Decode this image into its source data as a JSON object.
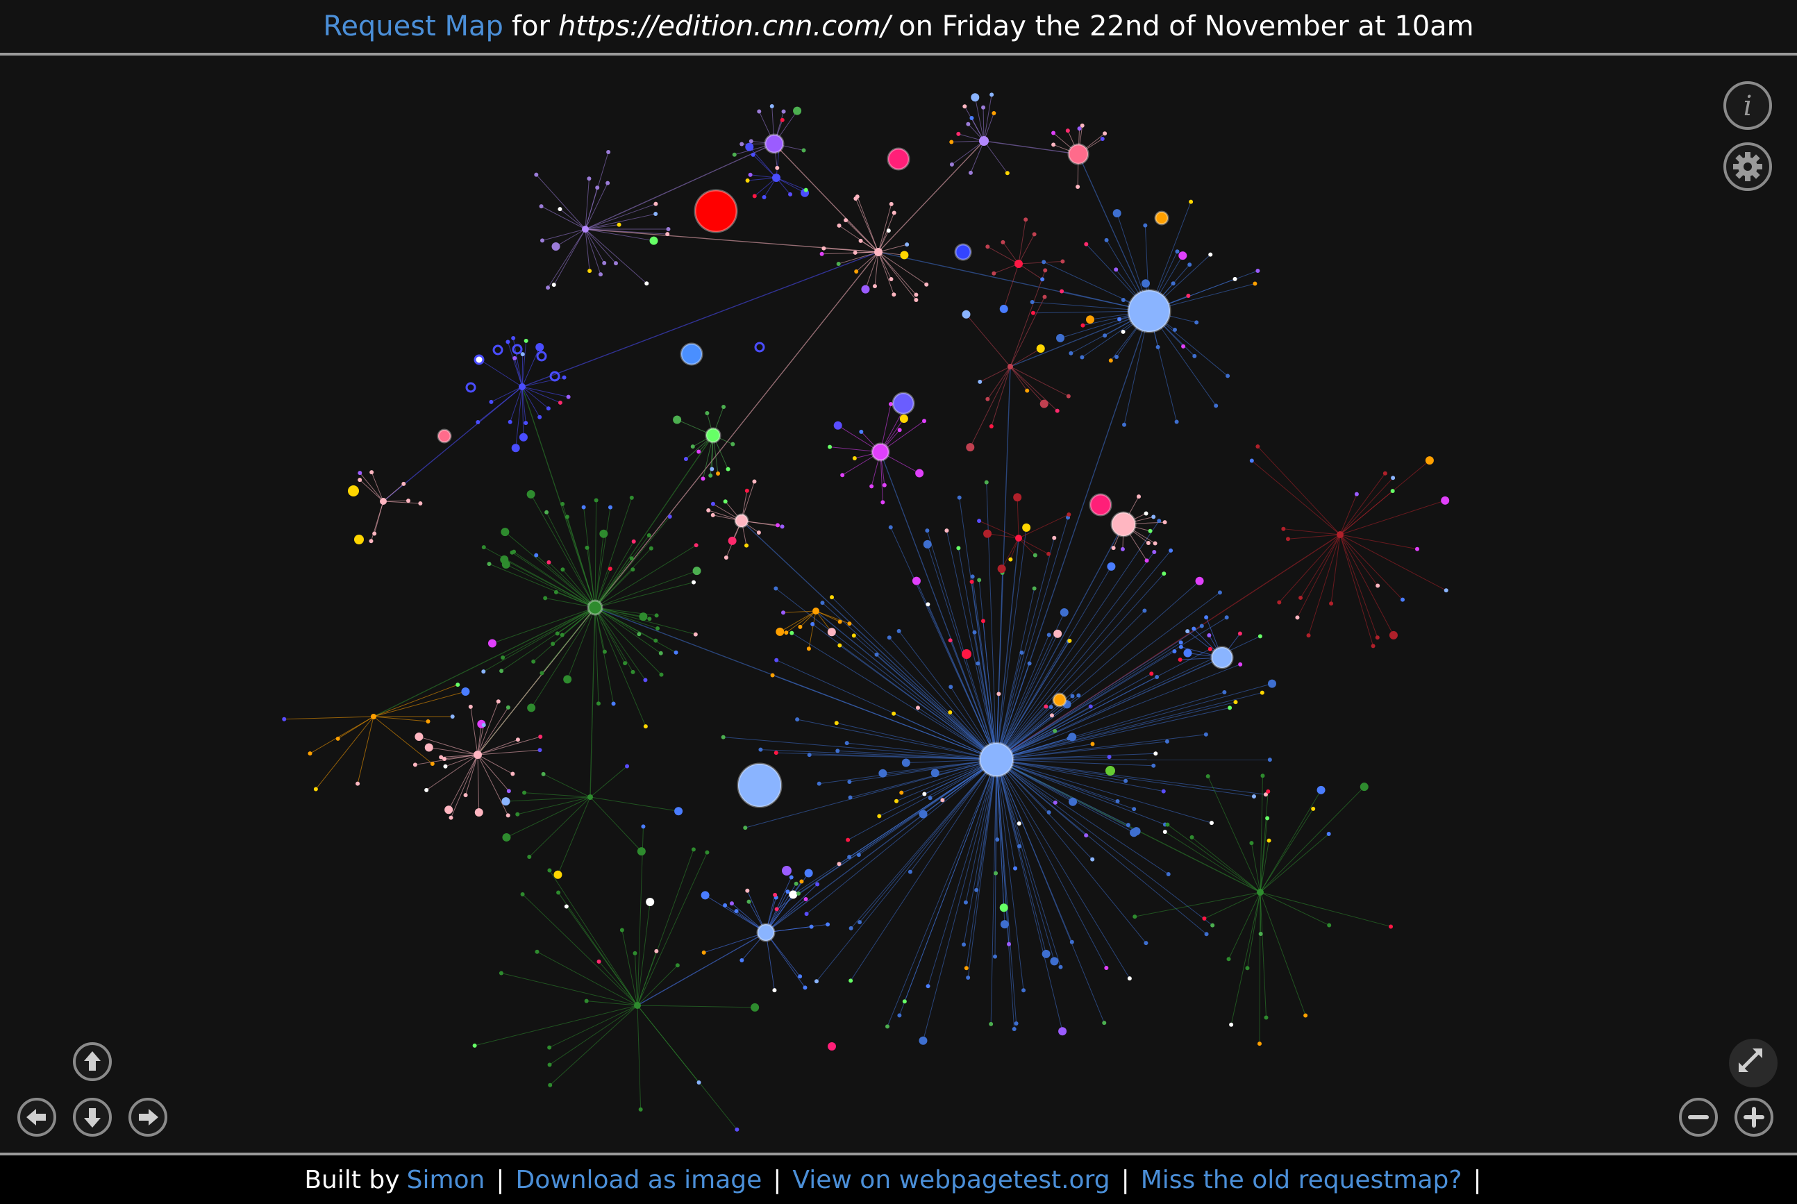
{
  "header": {
    "title_link": "Request Map",
    "for_text": "for",
    "url": "https://edition.cnn.com/",
    "date_text": "on Friday the 22nd of November at 10am"
  },
  "footer": {
    "built_by": "Built by",
    "author_link": "Simon",
    "download_link": "Download as image",
    "view_link": "View on webpagetest.org",
    "old_link": "Miss the old requestmap?",
    "separator": "|"
  },
  "controls": {
    "info_icon": "info-icon",
    "settings_icon": "gear-icon",
    "fullscreen_icon": "fullscreen-icon",
    "pan_up_icon": "arrow-up-icon",
    "pan_left_icon": "arrow-left-icon",
    "pan_down_icon": "arrow-down-icon",
    "pan_right_icon": "arrow-right-icon",
    "zoom_out_icon": "zoom-out-icon",
    "zoom_in_icon": "zoom-in-icon"
  },
  "colors": {
    "background": "#121212",
    "link": "#4b8fd8",
    "control": "#8a8a8a",
    "node_palette": [
      "#4a7dff",
      "#5a4dff",
      "#9b5cff",
      "#e040fb",
      "#ff2a6d",
      "#ff1744",
      "#ffa000",
      "#ffd600",
      "#4caf50",
      "#66ff66",
      "#ffffff",
      "#ffb6c1",
      "#8ab4ff"
    ]
  }
}
